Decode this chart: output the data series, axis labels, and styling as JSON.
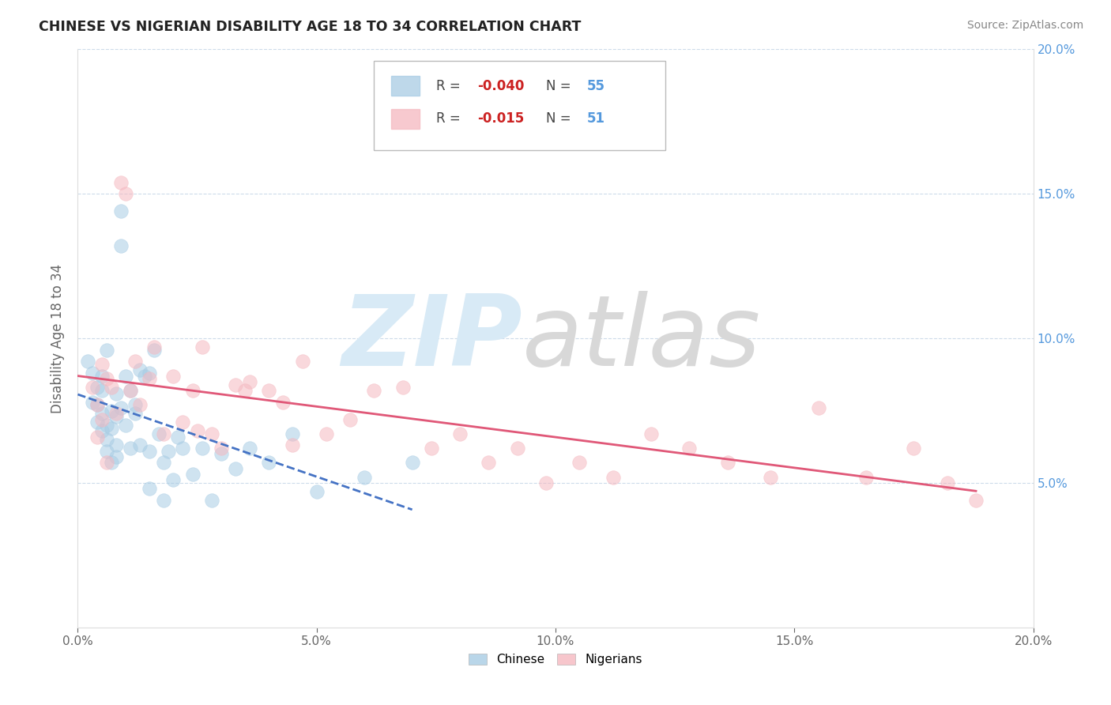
{
  "title": "CHINESE VS NIGERIAN DISABILITY AGE 18 TO 34 CORRELATION CHART",
  "source": "Source: ZipAtlas.com",
  "ylabel": "Disability Age 18 to 34",
  "xlim": [
    0.0,
    0.2
  ],
  "ylim": [
    0.0,
    0.2
  ],
  "xtick_vals": [
    0.0,
    0.05,
    0.1,
    0.15,
    0.2
  ],
  "xtick_labels": [
    "0.0%",
    "5.0%",
    "10.0%",
    "15.0%",
    "20.0%"
  ],
  "ytick_vals": [
    0.05,
    0.1,
    0.15,
    0.2
  ],
  "ytick_labels": [
    "5.0%",
    "10.0%",
    "15.0%",
    "20.0%"
  ],
  "R_chinese": -0.04,
  "N_chinese": 55,
  "R_nigerian": -0.015,
  "N_nigerian": 51,
  "chinese_scatter_color": "#a8cce4",
  "nigerian_scatter_color": "#f5b8c0",
  "chinese_line_color": "#4472c4",
  "nigerian_line_color": "#e05878",
  "legend_labels": [
    "Chinese",
    "Nigerians"
  ],
  "chinese_x": [
    0.002,
    0.003,
    0.003,
    0.004,
    0.004,
    0.004,
    0.005,
    0.005,
    0.005,
    0.005,
    0.006,
    0.006,
    0.006,
    0.006,
    0.007,
    0.007,
    0.007,
    0.008,
    0.008,
    0.008,
    0.008,
    0.009,
    0.009,
    0.009,
    0.01,
    0.01,
    0.011,
    0.011,
    0.012,
    0.012,
    0.013,
    0.013,
    0.014,
    0.015,
    0.015,
    0.016,
    0.017,
    0.018,
    0.019,
    0.02,
    0.021,
    0.022,
    0.024,
    0.026,
    0.028,
    0.03,
    0.033,
    0.036,
    0.04,
    0.045,
    0.05,
    0.06,
    0.07,
    0.015,
    0.018
  ],
  "chinese_y": [
    0.092,
    0.088,
    0.078,
    0.083,
    0.077,
    0.071,
    0.087,
    0.074,
    0.082,
    0.068,
    0.065,
    0.061,
    0.096,
    0.07,
    0.069,
    0.057,
    0.075,
    0.081,
    0.063,
    0.059,
    0.073,
    0.076,
    0.144,
    0.132,
    0.07,
    0.087,
    0.062,
    0.082,
    0.074,
    0.077,
    0.089,
    0.063,
    0.087,
    0.088,
    0.061,
    0.096,
    0.067,
    0.057,
    0.061,
    0.051,
    0.066,
    0.062,
    0.053,
    0.062,
    0.044,
    0.06,
    0.055,
    0.062,
    0.057,
    0.067,
    0.047,
    0.052,
    0.057,
    0.048,
    0.044
  ],
  "nigerian_x": [
    0.003,
    0.004,
    0.004,
    0.005,
    0.005,
    0.006,
    0.006,
    0.007,
    0.008,
    0.009,
    0.01,
    0.011,
    0.012,
    0.013,
    0.015,
    0.016,
    0.018,
    0.02,
    0.022,
    0.024,
    0.026,
    0.028,
    0.03,
    0.033,
    0.036,
    0.04,
    0.043,
    0.047,
    0.052,
    0.057,
    0.062,
    0.068,
    0.074,
    0.08,
    0.086,
    0.092,
    0.098,
    0.105,
    0.112,
    0.12,
    0.128,
    0.136,
    0.145,
    0.155,
    0.165,
    0.175,
    0.182,
    0.188,
    0.025,
    0.035,
    0.045
  ],
  "nigerian_y": [
    0.083,
    0.077,
    0.066,
    0.091,
    0.072,
    0.086,
    0.057,
    0.083,
    0.074,
    0.154,
    0.15,
    0.082,
    0.092,
    0.077,
    0.086,
    0.097,
    0.067,
    0.087,
    0.071,
    0.082,
    0.097,
    0.067,
    0.062,
    0.084,
    0.085,
    0.082,
    0.078,
    0.092,
    0.067,
    0.072,
    0.082,
    0.083,
    0.062,
    0.067,
    0.057,
    0.062,
    0.05,
    0.057,
    0.052,
    0.067,
    0.062,
    0.057,
    0.052,
    0.076,
    0.052,
    0.062,
    0.05,
    0.044,
    0.068,
    0.082,
    0.063
  ]
}
